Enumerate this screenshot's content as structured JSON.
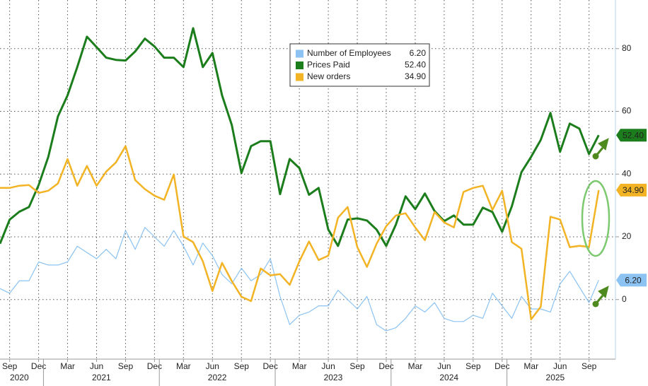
{
  "chart_data": {
    "type": "line",
    "categories": [
      null,
      "Sep",
      null,
      null,
      "Dec",
      null,
      null,
      "Mar",
      null,
      null,
      "Jun",
      null,
      null,
      "Sep",
      null,
      null,
      "Dec",
      null,
      null,
      "Mar",
      null,
      null,
      "Jun",
      null,
      null,
      "Sep",
      null,
      null,
      "Dec",
      null,
      null,
      "Mar",
      null,
      null,
      "Jun",
      null,
      null,
      "Sep",
      null,
      null,
      "Dec",
      null,
      null,
      "Mar",
      null,
      null,
      "Jun",
      null,
      null,
      "Sep",
      null,
      null,
      "Dec",
      null,
      null,
      "Mar",
      null,
      null,
      "Jun",
      null,
      null,
      "Sep",
      null
    ],
    "years": [
      "2020",
      "2021",
      "2022",
      "2023",
      "2024",
      "2025"
    ],
    "series": [
      {
        "name": "Number of Employees",
        "color": "#8cc3f2",
        "last": {
          "value": 6.2,
          "label": "6.20"
        },
        "values": [
          3.5,
          2,
          6,
          6,
          12,
          11,
          11,
          12,
          17,
          15,
          13,
          16,
          13,
          22,
          16,
          23,
          20,
          17,
          22,
          17,
          11,
          18,
          14,
          8,
          5,
          10,
          6,
          8,
          13,
          1,
          -8,
          -5,
          -4,
          -2,
          -2,
          3,
          0,
          -3,
          1,
          -8,
          -10,
          -9,
          -6,
          -2,
          -4,
          -1,
          -6,
          -7,
          -7,
          -5,
          -6,
          2,
          -2,
          -6,
          1,
          -3,
          -3,
          -4,
          5,
          9,
          4,
          -1,
          6.2
        ]
      },
      {
        "name": "Prices Paid",
        "color": "#1c7d1c",
        "last": {
          "value": 52.4,
          "label": "52.40"
        },
        "values": [
          17.8,
          25.5,
          28,
          29.5,
          36.5,
          45.5,
          58.4,
          65.1,
          74.1,
          83.8,
          80.5,
          77.1,
          76.4,
          76.2,
          79.1,
          83.2,
          80.7,
          77.1,
          77.1,
          74.1,
          86.5,
          74.1,
          78.6,
          65.1,
          55.7,
          40.3,
          48.9,
          50.5,
          50.5,
          33.6,
          44.8,
          41.9,
          33.4,
          35.6,
          22.3,
          17.1,
          25.5,
          25.9,
          25.2,
          22.3,
          17.1,
          23.9,
          32.9,
          28.8,
          33.8,
          28.2,
          25,
          26.8,
          23.9,
          23.9,
          29.3,
          27.9,
          21.6,
          29.7,
          40.6,
          45.5,
          50.9,
          59.5,
          47.1,
          56.1,
          54.5,
          46.4,
          52.4
        ]
      },
      {
        "name": "New orders",
        "color": "#f2b324",
        "last": {
          "value": 34.9,
          "label": "34.90"
        },
        "values": [
          35.6,
          35.6,
          36.3,
          36.5,
          34,
          34.7,
          37,
          44.8,
          36.3,
          42.6,
          36.3,
          40.8,
          43.7,
          48.9,
          38.1,
          35.2,
          33.1,
          31.8,
          39.9,
          20.1,
          18.3,
          12.2,
          2.7,
          11.7,
          5.9,
          0.9,
          -0.5,
          9.9,
          7.7,
          8.1,
          4.7,
          12.2,
          18.5,
          12.6,
          14,
          26.1,
          29.5,
          16.7,
          10.4,
          17.8,
          23.4,
          26.8,
          27.5,
          23,
          18.9,
          27.9,
          24.6,
          23,
          34.3,
          35.6,
          36.3,
          28.6,
          34.7,
          18.3,
          16.2,
          -6.3,
          -2.3,
          26.4,
          25.5,
          16.7,
          17.1,
          16.8,
          34.9
        ]
      }
    ],
    "ylim": [
      -19,
      95.5
    ],
    "yticks": [
      0,
      20,
      40,
      60,
      80
    ],
    "grid": true
  }
}
